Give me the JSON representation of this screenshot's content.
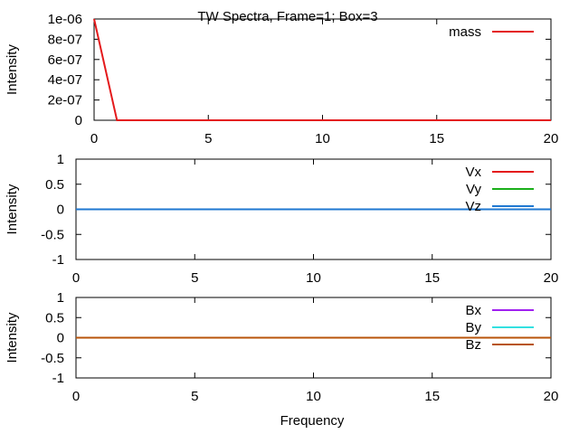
{
  "title": "TW Spectra, Frame=1; Box=3",
  "chart_data": [
    {
      "type": "line",
      "title": "TW Spectra, Frame=1; Box=3",
      "xlabel": "",
      "ylabel": "Intensity",
      "xlim": [
        0,
        20
      ],
      "ylim": [
        0,
        1e-06
      ],
      "xticks": [
        "0",
        "5",
        "10",
        "15",
        "20"
      ],
      "yticks": [
        "0",
        "2e-07",
        "4e-07",
        "6e-07",
        "8e-07",
        "1e-06"
      ],
      "legend_position": "top-right",
      "series": [
        {
          "name": "mass",
          "color": "#e41a1c",
          "x": [
            0,
            1,
            2,
            20
          ],
          "y": [
            1e-06,
            0,
            0,
            0
          ]
        }
      ]
    },
    {
      "type": "line",
      "xlabel": "",
      "ylabel": "Intensity",
      "xlim": [
        0,
        20
      ],
      "ylim": [
        -1,
        1
      ],
      "xticks": [
        "0",
        "5",
        "10",
        "15",
        "20"
      ],
      "yticks": [
        "-1",
        "-0.5",
        "0",
        "0.5",
        "1"
      ],
      "legend_position": "top-right",
      "series": [
        {
          "name": "Vx",
          "color": "#e41a1c",
          "x": [
            0,
            20
          ],
          "y": [
            0,
            0
          ]
        },
        {
          "name": "Vy",
          "color": "#1aaf1a",
          "x": [
            0,
            20
          ],
          "y": [
            0,
            0
          ]
        },
        {
          "name": "Vz",
          "color": "#1f78d1",
          "x": [
            0,
            20
          ],
          "y": [
            0,
            0
          ]
        }
      ]
    },
    {
      "type": "line",
      "xlabel": "Frequency",
      "ylabel": "Intensity",
      "xlim": [
        0,
        20
      ],
      "ylim": [
        -1,
        1
      ],
      "xticks": [
        "0",
        "5",
        "10",
        "15",
        "20"
      ],
      "yticks": [
        "-1",
        "-0.5",
        "0",
        "0.5",
        "1"
      ],
      "legend_position": "top-right",
      "series": [
        {
          "name": "Bx",
          "color": "#a020f0",
          "x": [
            0,
            20
          ],
          "y": [
            0,
            0
          ]
        },
        {
          "name": "By",
          "color": "#33e0e0",
          "x": [
            0,
            20
          ],
          "y": [
            0,
            0
          ]
        },
        {
          "name": "Bz",
          "color": "#b8540a",
          "x": [
            0,
            20
          ],
          "y": [
            0,
            0
          ]
        }
      ]
    }
  ]
}
